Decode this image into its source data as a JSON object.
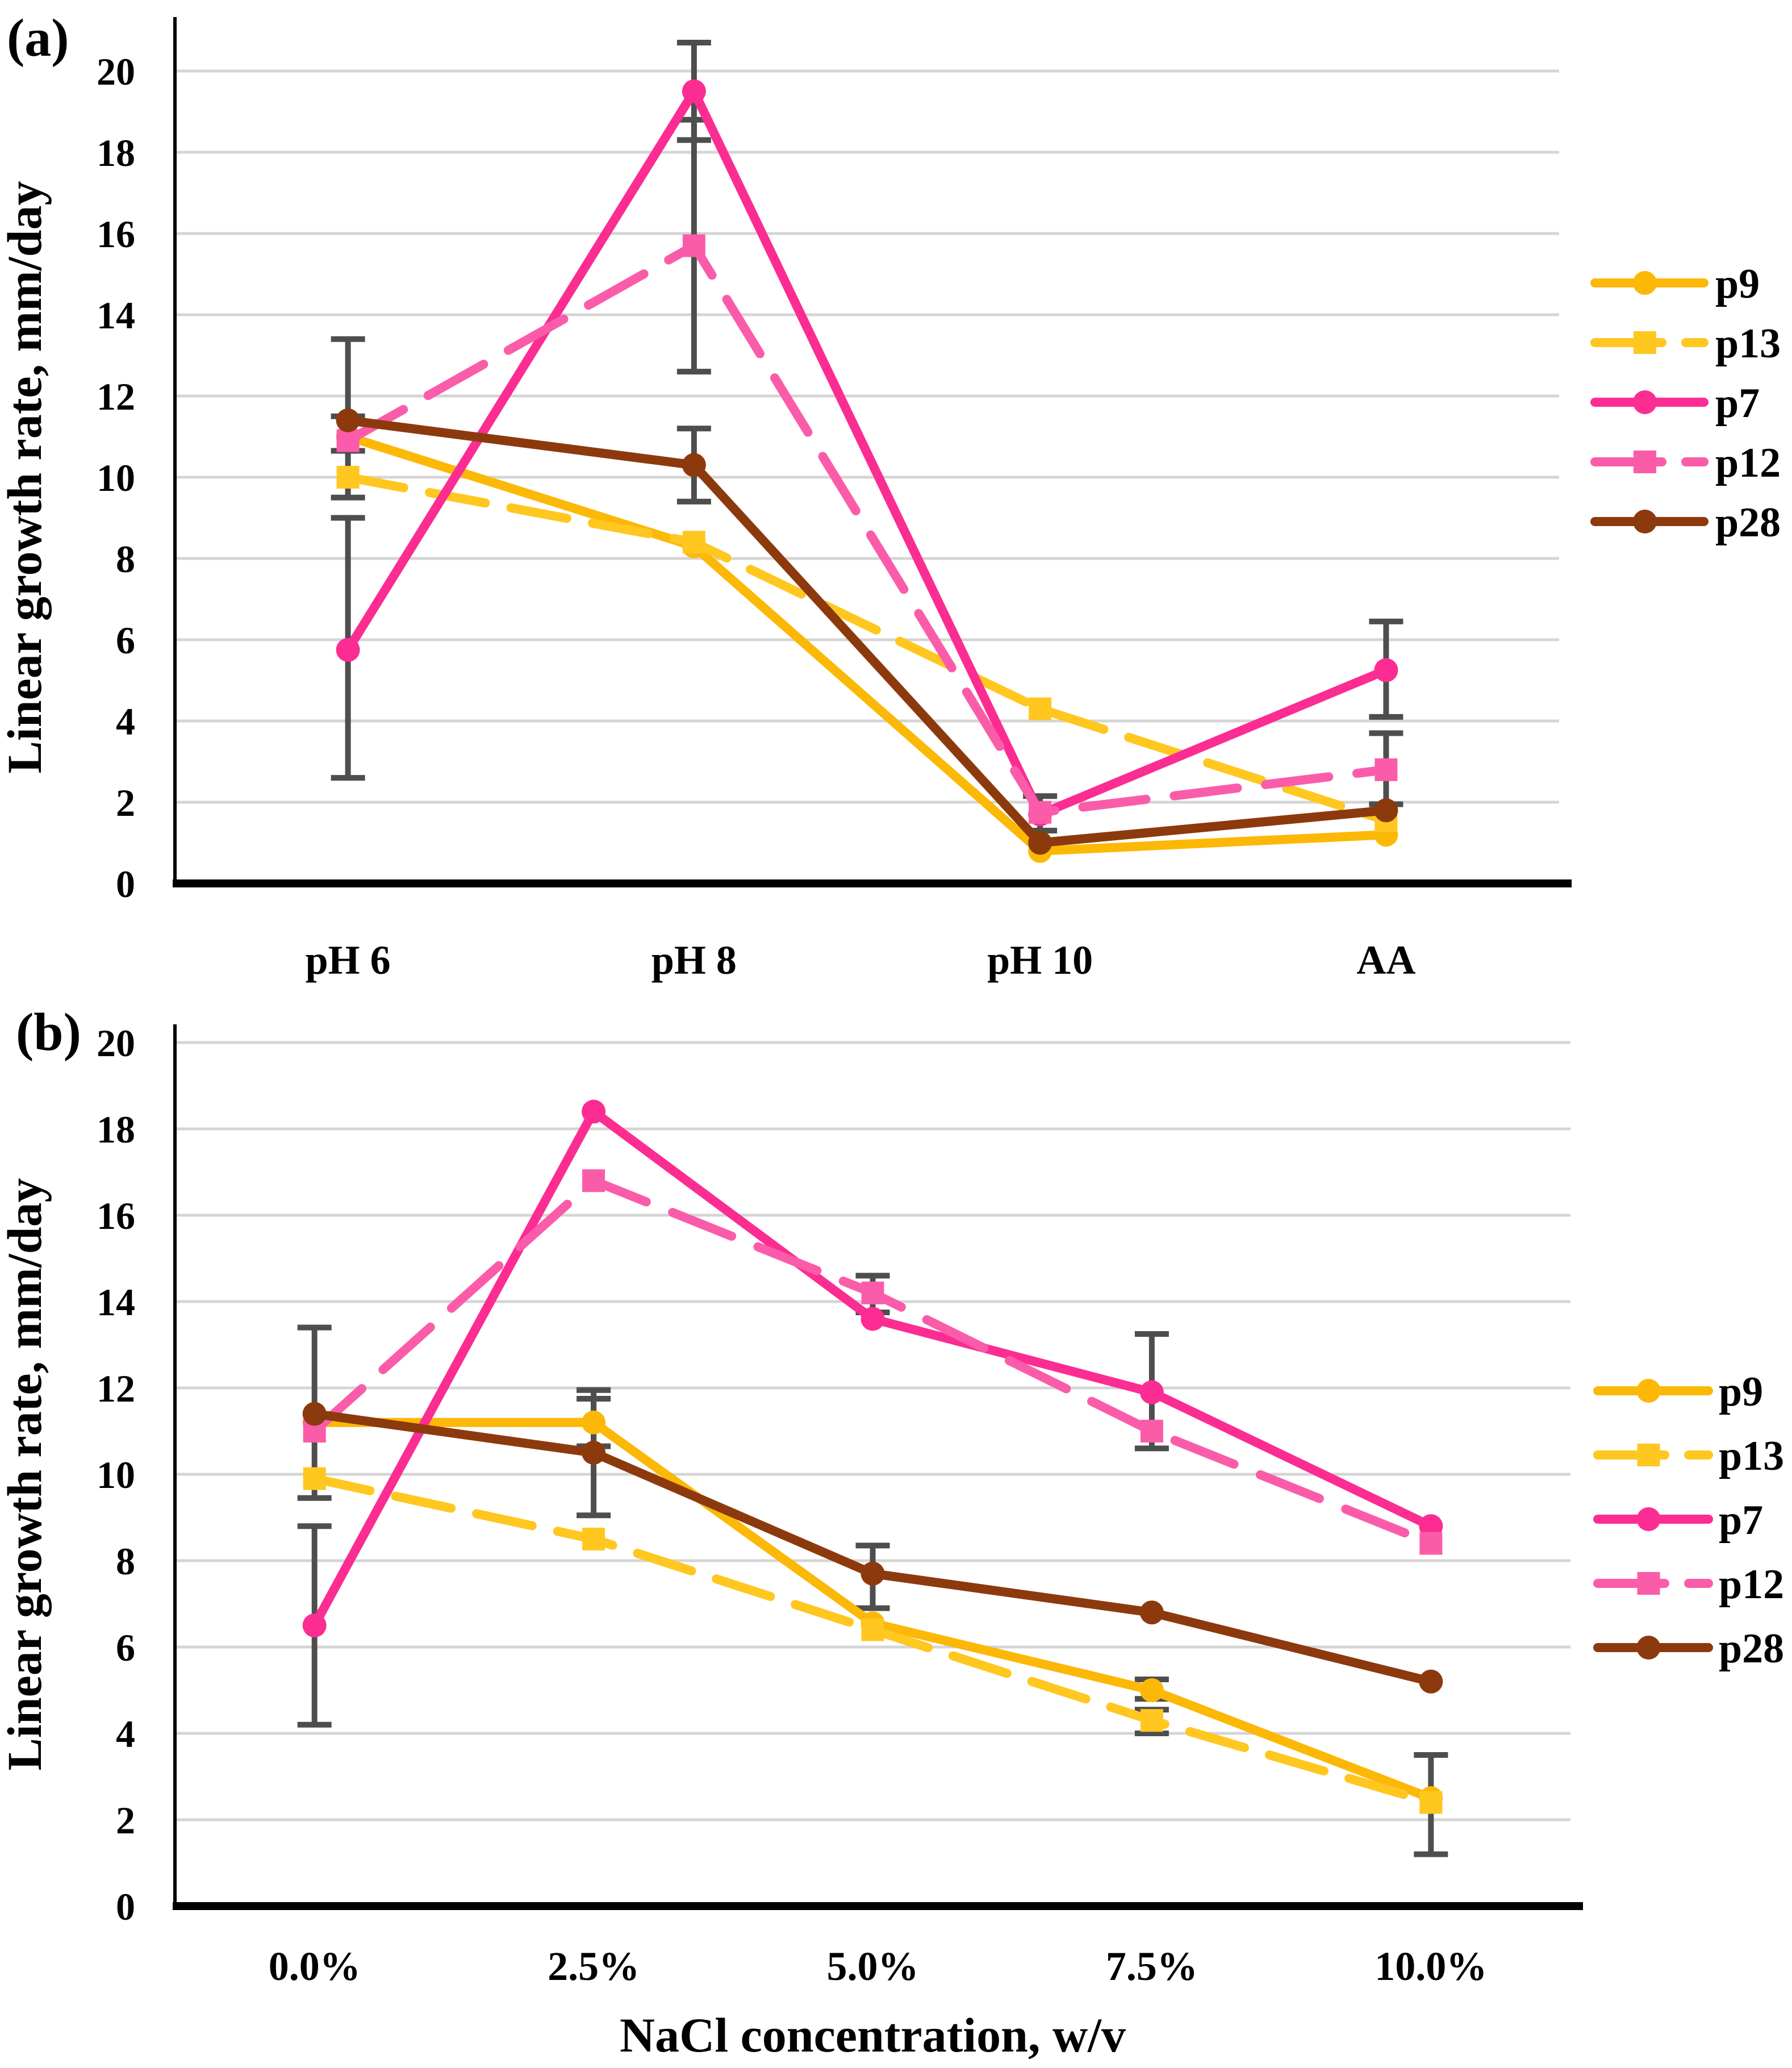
{
  "figure_title": "",
  "chart_data": [
    {
      "type": "line",
      "panel_label": "(a)",
      "title": "",
      "xlabel": "",
      "ylabel": "Linear growth rate, mm/day",
      "categories": [
        "pH 6",
        "pH 8",
        "pH 10",
        "AA"
      ],
      "ylim": [
        0,
        20
      ],
      "ytick_step": 2,
      "grid": true,
      "legend_position": "right",
      "legend_labels": [
        "p9",
        "p13",
        "p7",
        "p12",
        "p28"
      ],
      "error_bar_color": "#4E4E4E",
      "grid_color": "#D5D5D5",
      "axis_color": "#000000",
      "series": [
        {
          "name": "p9",
          "color": "#FCB806",
          "line": "solid",
          "marker": "circle",
          "values": [
            11.0,
            8.3,
            0.8,
            1.2
          ],
          "error_bars": [
            null,
            null,
            null,
            null
          ]
        },
        {
          "name": "p13",
          "color": "#FFC71F",
          "line": "dashed",
          "marker": "square",
          "values": [
            10.0,
            8.4,
            4.3,
            1.55
          ],
          "error_bars": [
            null,
            null,
            null,
            null
          ]
        },
        {
          "name": "p7",
          "color": "#FB2D92",
          "line": "solid",
          "marker": "circle",
          "values": [
            5.75,
            19.5,
            1.7,
            5.25
          ],
          "error_bars": [
            [
              2.6,
              9.0
            ],
            [
              18.3,
              20.7
            ],
            null,
            [
              4.1,
              6.45
            ]
          ]
        },
        {
          "name": "p12",
          "color": "#FB5CA9",
          "line": "dashed",
          "marker": "square",
          "values": [
            10.9,
            15.7,
            1.75,
            2.8
          ],
          "error_bars": [
            [
              10.65,
              11.5
            ],
            [
              12.6,
              18.8
            ],
            [
              1.3,
              2.15
            ],
            [
              1.95,
              3.7
            ]
          ]
        },
        {
          "name": "p28",
          "color": "#8C3A0D",
          "line": "solid",
          "marker": "circle",
          "values": [
            11.4,
            10.3,
            1.0,
            1.8
          ],
          "error_bars": [
            [
              9.5,
              13.4
            ],
            [
              9.4,
              11.2
            ],
            null,
            null
          ]
        }
      ]
    },
    {
      "type": "line",
      "panel_label": "(b)",
      "title": "",
      "xlabel": "NaCl concentration, w/v",
      "ylabel": "Linear growth rate, mm/day",
      "categories": [
        "0.0%",
        "2.5%",
        "5.0%",
        "7.5%",
        "10.0%"
      ],
      "ylim": [
        0,
        20
      ],
      "ytick_step": 2,
      "grid": true,
      "legend_position": "right",
      "legend_labels": [
        "p9",
        "p13",
        "p7",
        "p12",
        "p28"
      ],
      "error_bar_color": "#4E4E4E",
      "grid_color": "#D5D5D5",
      "axis_color": "#000000",
      "series": [
        {
          "name": "p9",
          "color": "#FCB806",
          "line": "solid",
          "marker": "circle",
          "values": [
            11.2,
            11.2,
            6.55,
            5.0,
            2.5
          ],
          "error_bars": [
            null,
            [
              10.65,
              11.75
            ],
            null,
            [
              4.8,
              5.25
            ],
            [
              1.2,
              3.5
            ]
          ]
        },
        {
          "name": "p13",
          "color": "#FFC71F",
          "line": "dashed",
          "marker": "square",
          "values": [
            9.9,
            8.5,
            6.4,
            4.3,
            2.4
          ],
          "error_bars": [
            null,
            null,
            null,
            [
              4.0,
              4.55
            ],
            null
          ]
        },
        {
          "name": "p7",
          "color": "#FB2D92",
          "line": "solid",
          "marker": "circle",
          "values": [
            6.5,
            18.4,
            13.6,
            11.9,
            8.8
          ],
          "error_bars": [
            [
              4.2,
              8.8
            ],
            null,
            null,
            [
              10.6,
              13.25
            ],
            null
          ]
        },
        {
          "name": "p12",
          "color": "#FB5CA9",
          "line": "dashed",
          "marker": "square",
          "values": [
            11.0,
            16.8,
            14.2,
            11.0,
            8.4
          ],
          "error_bars": [
            null,
            null,
            [
              13.75,
              14.6
            ],
            null,
            null
          ]
        },
        {
          "name": "p28",
          "color": "#8C3A0D",
          "line": "solid",
          "marker": "circle",
          "values": [
            11.4,
            10.5,
            7.7,
            6.8,
            5.2
          ],
          "error_bars": [
            [
              9.45,
              13.4
            ],
            [
              9.05,
              11.95
            ],
            [
              6.9,
              8.35
            ],
            null,
            null
          ]
        }
      ]
    }
  ]
}
